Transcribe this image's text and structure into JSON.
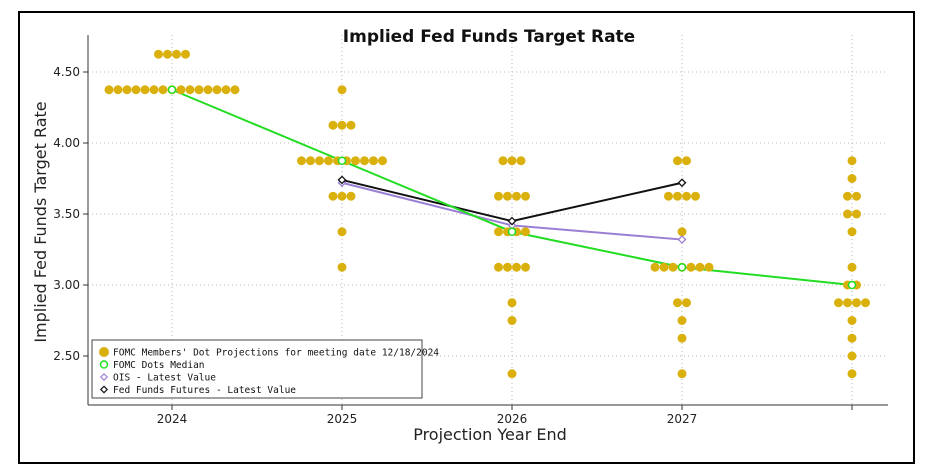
{
  "chart_data": {
    "type": "scatter",
    "title": "Implied Fed Funds Target Rate",
    "xlabel": "Projection Year End",
    "ylabel": "Implied Fed Funds Target Rate",
    "categories": [
      "2024",
      "2025",
      "2026",
      "2027",
      ""
    ],
    "y_ticks": [
      "2.50",
      "3.00",
      "3.50",
      "4.00",
      "4.50"
    ],
    "ylim": [
      2.2,
      4.82
    ],
    "grid": "dotted",
    "legend_position": "bottom-left",
    "colors": {
      "dots": "#DAB10C",
      "median": "#22DD22",
      "ois": "#9B7FD4",
      "futures": "#111111"
    },
    "series": [
      {
        "name": "FOMC Members' Dot Projections for meeting date 12/18/2024",
        "kind": "dots",
        "groups": [
          {
            "category": "2024",
            "levels": [
              {
                "y": 4.625,
                "count": 4
              },
              {
                "y": 4.375,
                "count": 15
              }
            ]
          },
          {
            "category": "2025",
            "levels": [
              {
                "y": 4.375,
                "count": 1
              },
              {
                "y": 4.125,
                "count": 3
              },
              {
                "y": 3.875,
                "count": 10
              },
              {
                "y": 3.625,
                "count": 3
              },
              {
                "y": 3.375,
                "count": 1
              },
              {
                "y": 3.125,
                "count": 1
              }
            ]
          },
          {
            "category": "2026",
            "levels": [
              {
                "y": 3.875,
                "count": 3
              },
              {
                "y": 3.625,
                "count": 4
              },
              {
                "y": 3.375,
                "count": 4
              },
              {
                "y": 3.125,
                "count": 4
              },
              {
                "y": 2.875,
                "count": 1
              },
              {
                "y": 2.75,
                "count": 1
              },
              {
                "y": 2.375,
                "count": 1
              }
            ]
          },
          {
            "category": "2027",
            "levels": [
              {
                "y": 3.875,
                "count": 2
              },
              {
                "y": 3.625,
                "count": 4
              },
              {
                "y": 3.375,
                "count": 1
              },
              {
                "y": 3.125,
                "count": 7
              },
              {
                "y": 2.875,
                "count": 2
              },
              {
                "y": 2.75,
                "count": 1
              },
              {
                "y": 2.625,
                "count": 1
              },
              {
                "y": 2.375,
                "count": 1
              }
            ]
          },
          {
            "category": "",
            "levels": [
              {
                "y": 3.875,
                "count": 1
              },
              {
                "y": 3.75,
                "count": 1
              },
              {
                "y": 3.625,
                "count": 2
              },
              {
                "y": 3.5,
                "count": 2
              },
              {
                "y": 3.375,
                "count": 1
              },
              {
                "y": 3.125,
                "count": 1
              },
              {
                "y": 3.0,
                "count": 2
              },
              {
                "y": 2.875,
                "count": 4
              },
              {
                "y": 2.75,
                "count": 1
              },
              {
                "y": 2.625,
                "count": 1
              },
              {
                "y": 2.5,
                "count": 1
              },
              {
                "y": 2.375,
                "count": 1
              }
            ]
          }
        ]
      },
      {
        "name": "FOMC Dots Median",
        "kind": "line",
        "marker": "circle",
        "x": [
          "2024",
          "2025",
          "2026",
          "2027",
          ""
        ],
        "values": [
          4.375,
          3.875,
          3.375,
          3.125,
          3.0
        ]
      },
      {
        "name": "OIS - Latest Value",
        "kind": "line",
        "marker": "diamond",
        "x": [
          "2025",
          "2026",
          "2027"
        ],
        "values": [
          3.72,
          3.42,
          3.32
        ]
      },
      {
        "name": "Fed Funds Futures - Latest Value",
        "kind": "line",
        "marker": "diamond",
        "x": [
          "2025",
          "2026",
          "2027"
        ],
        "values": [
          3.74,
          3.45,
          3.72
        ]
      }
    ]
  }
}
